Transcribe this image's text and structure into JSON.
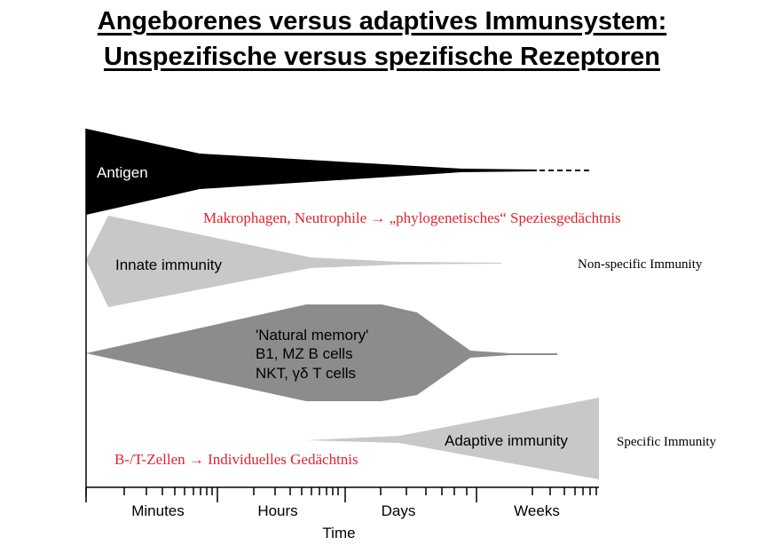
{
  "title": {
    "line1": "Angeborenes versus adaptives Immunsystem:",
    "line2": "Unspezifische versus spezifische Rezeptoren"
  },
  "bands": {
    "antigen": "Antigen",
    "innate": "Innate immunity",
    "natural_memory": {
      "line1": "'Natural memory'",
      "line2": "B1, MZ B cells",
      "line3": "NKT, γδ T cells"
    },
    "adaptive": "Adaptive immunity"
  },
  "annotations": {
    "innate_cells": {
      "before": "Makrophagen, Neutrophile",
      "arrow": "→",
      "after": "„phylogenetisches“ Speziesgedächtnis"
    },
    "adaptive_cells": {
      "before": "B-/T-Zellen",
      "arrow": "→",
      "after": "Individuelles Gedächtnis"
    },
    "non_specific": "Non-specific Immunity",
    "specific": "Specific Immunity"
  },
  "time_axis": {
    "labels": [
      "Minutes",
      "Hours",
      "Days",
      "Weeks"
    ],
    "title": "Time"
  },
  "colors": {
    "antigen": "#000000",
    "innate": "#c8c8c8",
    "natural_memory": "#8c8c8c",
    "adaptive": "#c8c8c8",
    "annotation_red": "#e0242c"
  }
}
